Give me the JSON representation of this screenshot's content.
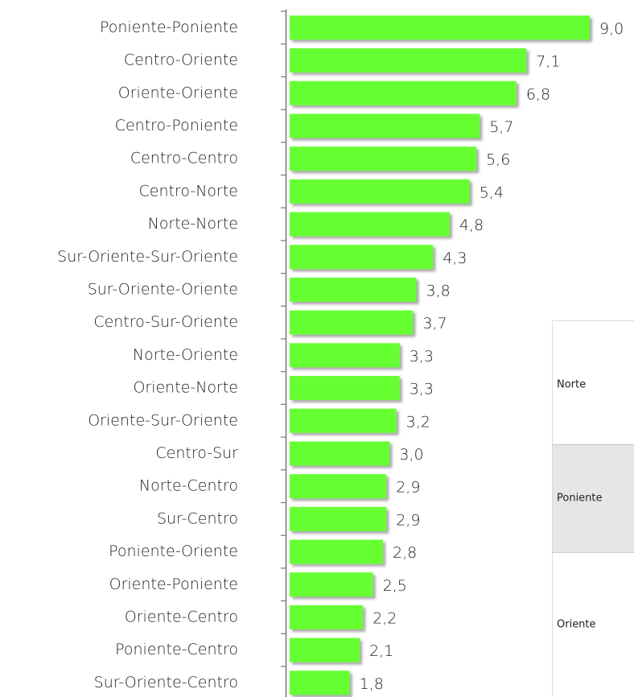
{
  "chart_data": {
    "type": "bar",
    "orientation": "horizontal",
    "categories": [
      "Poniente-Poniente",
      "Centro-Oriente",
      "Oriente-Oriente",
      "Centro-Poniente",
      "Centro-Centro",
      "Centro-Norte",
      "Norte-Norte",
      "Sur-Oriente-Sur-Oriente",
      "Sur-Oriente-Oriente",
      "Centro-Sur-Oriente",
      "Norte-Oriente",
      "Oriente-Norte",
      "Oriente-Sur-Oriente",
      "Centro-Sur",
      "Norte-Centro",
      "Sur-Centro",
      "Poniente-Oriente",
      "Oriente-Poniente",
      "Oriente-Centro",
      "Poniente-Centro",
      "Sur-Oriente-Centro"
    ],
    "values": [
      9.0,
      7.1,
      6.8,
      5.7,
      5.6,
      5.4,
      4.8,
      4.3,
      3.8,
      3.7,
      3.3,
      3.3,
      3.2,
      3.0,
      2.9,
      2.9,
      2.8,
      2.5,
      2.2,
      2.1,
      1.8
    ],
    "value_labels": [
      "9,0",
      "7,1",
      "6,8",
      "5,7",
      "5,6",
      "5,4",
      "4,8",
      "4,3",
      "3,8",
      "3,7",
      "3,3",
      "3,3",
      "3,2",
      "3,0",
      "2,9",
      "2,9",
      "2,8",
      "2,5",
      "2,2",
      "2,1",
      "1,8"
    ],
    "color": "#66ff33"
  },
  "panel": {
    "rows": [
      "Norte",
      "Poniente",
      "Oriente"
    ]
  }
}
